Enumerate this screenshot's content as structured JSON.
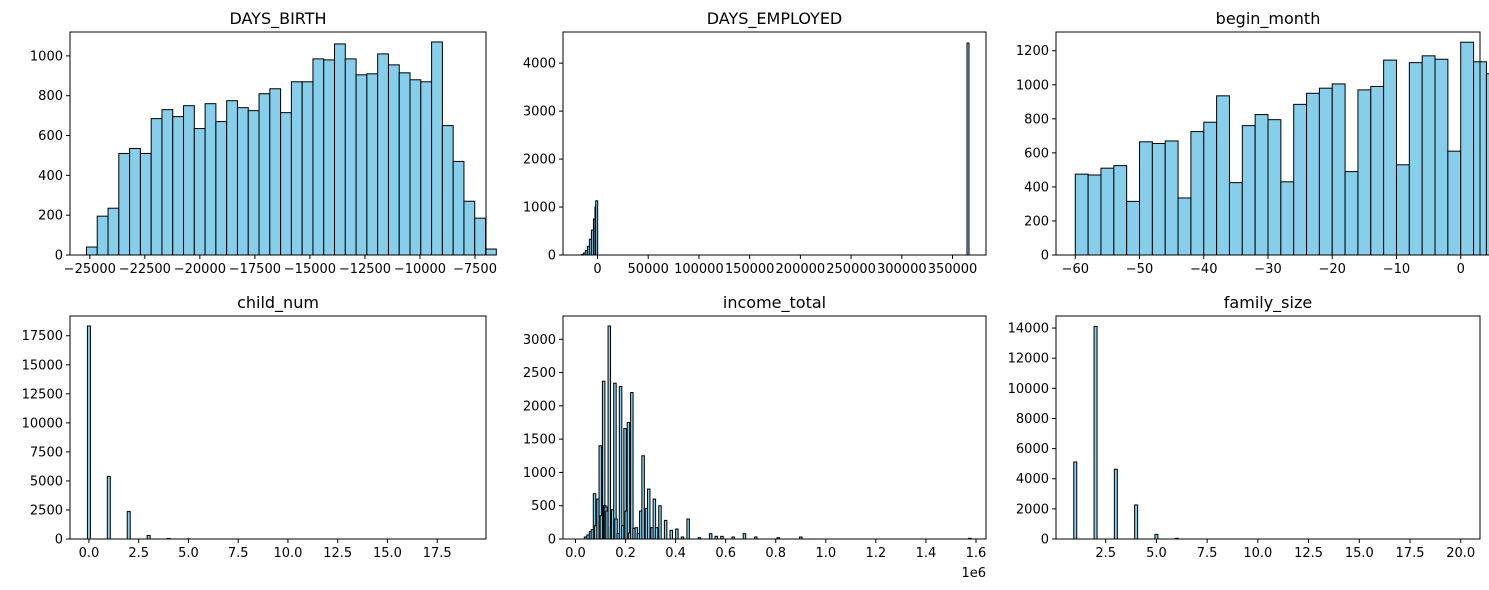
{
  "figure": {
    "background": "#ffffff"
  },
  "style": {
    "bar_fill": "#87ceeb",
    "bar_edge": "#000000"
  },
  "chart_data": [
    {
      "id": "days_birth",
      "type": "bar",
      "title": "DAYS_BIRTH",
      "xlim": [
        -25900,
        -7000
      ],
      "ylim": [
        0,
        1120
      ],
      "xticks": [
        {
          "value": -25000,
          "label": "−25000"
        },
        {
          "value": -22500,
          "label": "−22500"
        },
        {
          "value": -20000,
          "label": "−20000"
        },
        {
          "value": -17500,
          "label": "−17500"
        },
        {
          "value": -15000,
          "label": "−15000"
        },
        {
          "value": -12500,
          "label": "−12500"
        },
        {
          "value": -10000,
          "label": "−10000"
        },
        {
          "value": -7500,
          "label": "−7500"
        }
      ],
      "yticks": [
        {
          "value": 0,
          "label": "0"
        },
        {
          "value": 200,
          "label": "200"
        },
        {
          "value": 400,
          "label": "400"
        },
        {
          "value": 600,
          "label": "600"
        },
        {
          "value": 800,
          "label": "800"
        },
        {
          "value": 1000,
          "label": "1000"
        }
      ],
      "bin_start": -25152,
      "bin_width": 490,
      "values": [
        40,
        195,
        235,
        510,
        535,
        510,
        685,
        730,
        695,
        750,
        635,
        760,
        670,
        775,
        740,
        725,
        810,
        835,
        715,
        870,
        870,
        985,
        980,
        1060,
        985,
        905,
        910,
        1010,
        955,
        915,
        880,
        870,
        1070,
        650,
        470,
        270,
        185,
        30
      ]
    },
    {
      "id": "days_employed",
      "type": "bar",
      "title": "DAYS_EMPLOYED",
      "xlim": [
        -34000,
        383000
      ],
      "ylim": [
        0,
        4650
      ],
      "xticks": [
        {
          "value": 0,
          "label": "0"
        },
        {
          "value": 50000,
          "label": "50000"
        },
        {
          "value": 100000,
          "label": "100000"
        },
        {
          "value": 150000,
          "label": "150000"
        },
        {
          "value": 200000,
          "label": "200000"
        },
        {
          "value": 250000,
          "label": "250000"
        },
        {
          "value": 300000,
          "label": "300000"
        },
        {
          "value": 350000,
          "label": "350000"
        }
      ],
      "yticks": [
        {
          "value": 0,
          "label": "0"
        },
        {
          "value": 1000,
          "label": "1000"
        },
        {
          "value": 2000,
          "label": "2000"
        },
        {
          "value": 3000,
          "label": "3000"
        },
        {
          "value": 4000,
          "label": "4000"
        }
      ],
      "x": [
        -15000,
        -13000,
        -11000,
        -9000,
        -7000,
        -5000,
        -3000,
        -1500,
        -800,
        365243
      ],
      "values": [
        10,
        40,
        90,
        180,
        330,
        520,
        750,
        1000,
        1130,
        4420
      ]
    },
    {
      "id": "begin_month",
      "type": "bar",
      "title": "begin_month",
      "xlim": [
        -63,
        3
      ],
      "ylim": [
        0,
        1310
      ],
      "xticks": [
        {
          "value": -60,
          "label": "−60"
        },
        {
          "value": -50,
          "label": "−50"
        },
        {
          "value": -40,
          "label": "−40"
        },
        {
          "value": -30,
          "label": "−30"
        },
        {
          "value": -20,
          "label": "−20"
        },
        {
          "value": -10,
          "label": "−10"
        },
        {
          "value": 0,
          "label": "0"
        }
      ],
      "yticks": [
        {
          "value": 0,
          "label": "0"
        },
        {
          "value": 200,
          "label": "200"
        },
        {
          "value": 400,
          "label": "400"
        },
        {
          "value": 600,
          "label": "600"
        },
        {
          "value": 800,
          "label": "800"
        },
        {
          "value": 1000,
          "label": "1000"
        },
        {
          "value": 1200,
          "label": "1200"
        }
      ],
      "bin_start": -60,
      "bin_width": 2,
      "values": [
        475,
        470,
        510,
        525,
        315,
        665,
        655,
        670,
        335,
        725,
        780,
        935,
        425,
        760,
        825,
        795,
        430,
        885,
        950,
        980,
        1005,
        490,
        970,
        990,
        1145,
        530,
        1130,
        1170,
        1150,
        610,
        1250,
        1135,
        1065,
        640
      ]
    },
    {
      "id": "child_num",
      "type": "bar",
      "title": "child_num",
      "xlim": [
        -0.95,
        19.95
      ],
      "ylim": [
        0,
        19200
      ],
      "xticks": [
        {
          "value": 0,
          "label": "0.0"
        },
        {
          "value": 2.5,
          "label": "2.5"
        },
        {
          "value": 5,
          "label": "5.0"
        },
        {
          "value": 7.5,
          "label": "7.5"
        },
        {
          "value": 10,
          "label": "10.0"
        },
        {
          "value": 12.5,
          "label": "12.5"
        },
        {
          "value": 15,
          "label": "15.0"
        },
        {
          "value": 17.5,
          "label": "17.5"
        }
      ],
      "yticks": [
        {
          "value": 0,
          "label": "0"
        },
        {
          "value": 2500,
          "label": "2500"
        },
        {
          "value": 5000,
          "label": "5000"
        },
        {
          "value": 7500,
          "label": "7500"
        },
        {
          "value": 10000,
          "label": "10000"
        },
        {
          "value": 12500,
          "label": "12500"
        },
        {
          "value": 15000,
          "label": "15000"
        },
        {
          "value": 17500,
          "label": "17500"
        }
      ],
      "x": [
        0,
        1,
        2,
        3,
        4,
        5
      ],
      "values": [
        18340,
        5386,
        2362,
        306,
        47,
        15
      ]
    },
    {
      "id": "income_total",
      "type": "bar",
      "title": "income_total",
      "offset_text": "1e6",
      "xlim": [
        -50000,
        1640000
      ],
      "ylim": [
        0,
        3350
      ],
      "xticks": [
        {
          "value": 0,
          "label": "0.0"
        },
        {
          "value": 200000,
          "label": "0.2"
        },
        {
          "value": 400000,
          "label": "0.4"
        },
        {
          "value": 600000,
          "label": "0.6"
        },
        {
          "value": 800000,
          "label": "0.8"
        },
        {
          "value": 1000000,
          "label": "1.0"
        },
        {
          "value": 1200000,
          "label": "1.2"
        },
        {
          "value": 1400000,
          "label": "1.4"
        },
        {
          "value": 1600000,
          "label": "1.6"
        }
      ],
      "yticks": [
        {
          "value": 0,
          "label": "0"
        },
        {
          "value": 500,
          "label": "500"
        },
        {
          "value": 1000,
          "label": "1000"
        },
        {
          "value": 1500,
          "label": "1500"
        },
        {
          "value": 2000,
          "label": "2000"
        },
        {
          "value": 2500,
          "label": "2500"
        },
        {
          "value": 3000,
          "label": "3000"
        }
      ],
      "x": [
        40000,
        50000,
        60000,
        67500,
        76000,
        81000,
        90000,
        99000,
        103500,
        112500,
        117000,
        121500,
        126000,
        135000,
        144000,
        148500,
        157500,
        162000,
        171000,
        180000,
        189000,
        198000,
        202500,
        211500,
        216000,
        225000,
        234000,
        243000,
        252000,
        261000,
        270000,
        283500,
        292500,
        306000,
        315000,
        324000,
        337500,
        360000,
        382500,
        405000,
        427500,
        450000,
        495000,
        540000,
        562500,
        585000,
        630000,
        675000,
        720000,
        810000,
        900000,
        1575000
      ],
      "values": [
        30,
        60,
        110,
        140,
        680,
        200,
        600,
        1400,
        350,
        2370,
        500,
        480,
        420,
        3200,
        180,
        440,
        2340,
        300,
        80,
        2290,
        200,
        1660,
        420,
        1750,
        90,
        2200,
        160,
        170,
        80,
        420,
        1250,
        460,
        750,
        170,
        600,
        170,
        500,
        280,
        130,
        150,
        30,
        300,
        20,
        80,
        40,
        40,
        30,
        80,
        30,
        20,
        30,
        10
      ]
    },
    {
      "id": "family_size",
      "type": "bar",
      "title": "family_size",
      "xlim": [
        0.05,
        20.95
      ],
      "ylim": [
        0,
        14800
      ],
      "xticks": [
        {
          "value": 2.5,
          "label": "2.5"
        },
        {
          "value": 5,
          "label": "5.0"
        },
        {
          "value": 7.5,
          "label": "7.5"
        },
        {
          "value": 10,
          "label": "10.0"
        },
        {
          "value": 12.5,
          "label": "12.5"
        },
        {
          "value": 15,
          "label": "15.0"
        },
        {
          "value": 17.5,
          "label": "17.5"
        },
        {
          "value": 20,
          "label": "20.0"
        }
      ],
      "yticks": [
        {
          "value": 0,
          "label": "0"
        },
        {
          "value": 2000,
          "label": "2000"
        },
        {
          "value": 4000,
          "label": "4000"
        },
        {
          "value": 6000,
          "label": "6000"
        },
        {
          "value": 8000,
          "label": "8000"
        },
        {
          "value": 10000,
          "label": "10000"
        },
        {
          "value": 12000,
          "label": "12000"
        },
        {
          "value": 14000,
          "label": "14000"
        }
      ],
      "x": [
        1,
        2,
        3,
        4,
        5,
        6
      ],
      "values": [
        5110,
        14110,
        4630,
        2260,
        306,
        45
      ]
    }
  ]
}
